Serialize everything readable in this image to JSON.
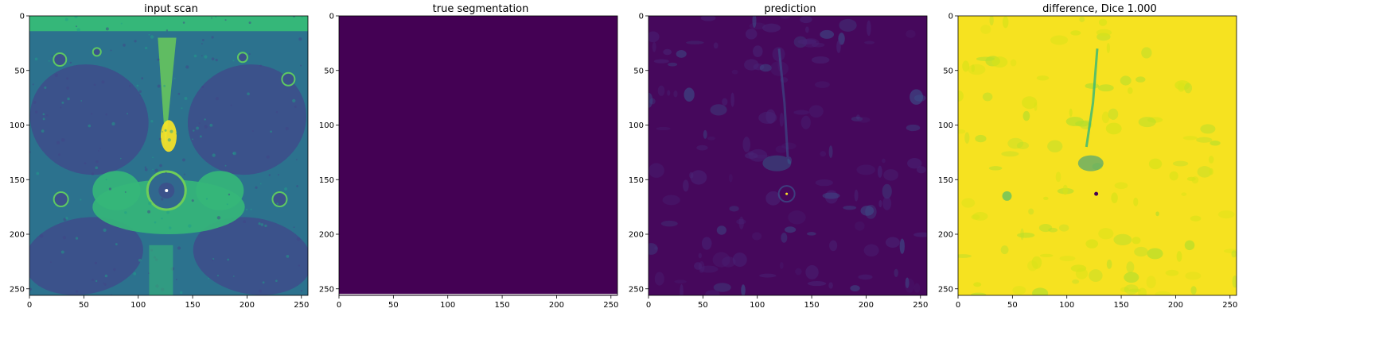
{
  "chart_data": [
    {
      "type": "heatmap",
      "title": "input scan",
      "xlim": [
        0,
        256
      ],
      "ylim": [
        256,
        0
      ],
      "xticks": [
        0,
        50,
        100,
        150,
        200,
        250
      ],
      "yticks": [
        0,
        50,
        100,
        150,
        200,
        250
      ],
      "colormap": "viridis",
      "content": "mri-scan"
    },
    {
      "type": "heatmap",
      "title": "true segmentation",
      "xlim": [
        0,
        256
      ],
      "ylim": [
        256,
        0
      ],
      "xticks": [
        0,
        50,
        100,
        150,
        200,
        250
      ],
      "yticks": [
        0,
        50,
        100,
        150,
        200,
        250
      ],
      "colormap": "viridis",
      "content": "uniform-low"
    },
    {
      "type": "heatmap",
      "title": "prediction",
      "xlim": [
        0,
        256
      ],
      "ylim": [
        256,
        0
      ],
      "xticks": [
        0,
        50,
        100,
        150,
        200,
        250
      ],
      "yticks": [
        0,
        50,
        100,
        150,
        200,
        250
      ],
      "colormap": "viridis",
      "content": "mostly-low"
    },
    {
      "type": "heatmap",
      "title": "difference, Dice 1.000",
      "xlim": [
        0,
        256
      ],
      "ylim": [
        256,
        0
      ],
      "xticks": [
        0,
        50,
        100,
        150,
        200,
        250
      ],
      "yticks": [
        0,
        50,
        100,
        150,
        200,
        250
      ],
      "colormap": "viridis",
      "content": "mostly-high"
    }
  ],
  "colors": {
    "viridis_low": "#440154",
    "viridis_mid": "#21918c",
    "viridis_teal": "#35b779",
    "viridis_high": "#fde725"
  }
}
